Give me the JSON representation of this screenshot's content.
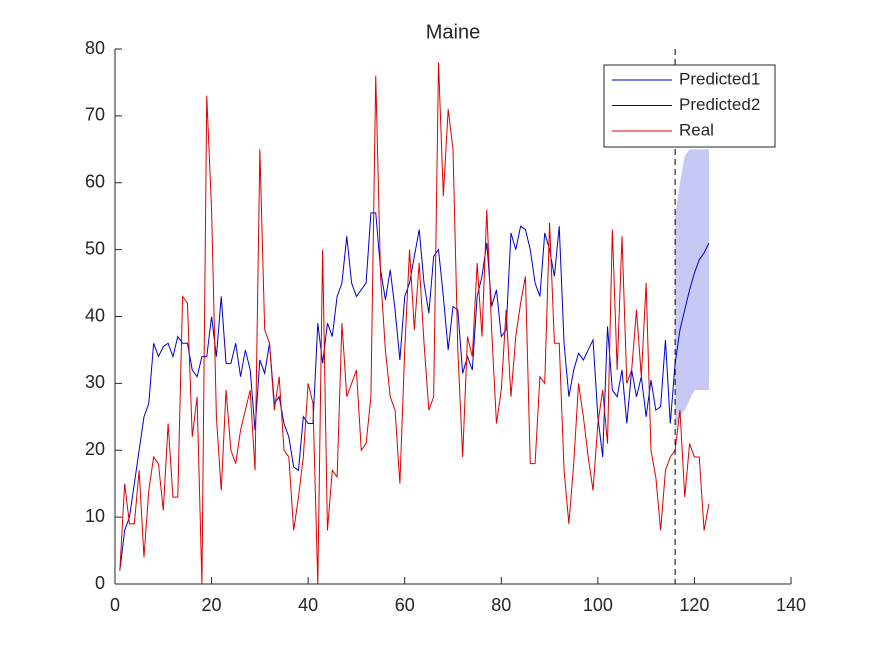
{
  "chart_data": {
    "type": "line",
    "title": "Maine",
    "xlim": [
      0,
      140
    ],
    "xticks": [
      0,
      20,
      40,
      60,
      80,
      100,
      120,
      140
    ],
    "ylim": [
      0,
      80
    ],
    "yticks": [
      0,
      10,
      20,
      30,
      40,
      50,
      60,
      70,
      80
    ],
    "legend": "top-right",
    "vline": 116,
    "series": [
      {
        "name": "Predicted1",
        "color": "#0000cc",
        "x": [
          1,
          2,
          3,
          4,
          5,
          6,
          7,
          8,
          9,
          10,
          11,
          12,
          13,
          14,
          15,
          16,
          17,
          18,
          19,
          20,
          21,
          22,
          23,
          24,
          25,
          26,
          27,
          28,
          29,
          30,
          31,
          32,
          33,
          34,
          35,
          36,
          37,
          38,
          39,
          40,
          41,
          42,
          43,
          44,
          45,
          46,
          47,
          48,
          49,
          50,
          51,
          52,
          53,
          54,
          55,
          56,
          57,
          58,
          59,
          60,
          61,
          62,
          63,
          64,
          65,
          66,
          67,
          68,
          69,
          70,
          71,
          72,
          73,
          74,
          75,
          76,
          77,
          78,
          79,
          80,
          81,
          82,
          83,
          84,
          85,
          86,
          87,
          88,
          89,
          90,
          91,
          92,
          93,
          94,
          95,
          96,
          97,
          98,
          99,
          100,
          101,
          102,
          103,
          104,
          105,
          106,
          107,
          108,
          109,
          110,
          111,
          112,
          113,
          114,
          115,
          116
        ],
        "values": [
          2,
          8,
          10,
          15,
          20,
          25,
          27,
          36,
          34,
          35.5,
          36,
          34,
          37,
          36,
          36,
          32,
          31,
          34,
          34,
          40,
          34,
          43,
          33,
          33,
          36,
          31,
          35,
          32,
          23,
          33.5,
          31.5,
          36,
          27,
          28,
          24,
          22,
          17.5,
          17,
          25,
          24,
          24,
          39,
          33,
          39,
          37,
          43,
          45,
          52,
          45,
          43,
          44,
          45,
          55.5,
          55.5,
          47,
          42.5,
          47,
          41,
          33.5,
          43,
          45,
          49,
          53,
          45,
          40.5,
          49,
          50,
          43,
          35,
          41.5,
          41,
          31.5,
          34,
          32,
          43,
          46,
          51,
          41.5,
          44,
          37,
          38,
          52.5,
          50,
          53.5,
          53,
          50,
          45,
          43,
          52.5,
          50,
          46,
          53.5,
          36,
          28,
          32,
          34.5,
          33.5,
          35,
          36.5,
          25,
          19,
          38.5,
          29,
          28,
          32,
          24,
          32,
          28,
          31,
          25,
          30.5,
          26,
          26.5,
          36.5,
          24,
          33
        ]
      },
      {
        "name": "Predicted2",
        "color": "#0000cc",
        "x": [
          116,
          117,
          118,
          119,
          120,
          121,
          122,
          123
        ],
        "values": [
          33,
          38,
          41,
          44,
          46.5,
          48.5,
          49.5,
          51
        ]
      },
      {
        "name": "Real",
        "color": "#dd0000",
        "x": [
          1,
          2,
          3,
          4,
          5,
          6,
          7,
          8,
          9,
          10,
          11,
          12,
          13,
          14,
          15,
          16,
          17,
          18,
          19,
          20,
          21,
          22,
          23,
          24,
          25,
          26,
          27,
          28,
          29,
          30,
          31,
          32,
          33,
          34,
          35,
          36,
          37,
          38,
          39,
          40,
          41,
          42,
          43,
          44,
          45,
          46,
          47,
          48,
          49,
          50,
          51,
          52,
          53,
          54,
          55,
          56,
          57,
          58,
          59,
          60,
          61,
          62,
          63,
          64,
          65,
          66,
          67,
          68,
          69,
          70,
          71,
          72,
          73,
          74,
          75,
          76,
          77,
          78,
          79,
          80,
          81,
          82,
          83,
          84,
          85,
          86,
          87,
          88,
          89,
          90,
          91,
          92,
          93,
          94,
          95,
          96,
          97,
          98,
          99,
          100,
          101,
          102,
          103,
          104,
          105,
          106,
          107,
          108,
          109,
          110,
          111,
          112,
          113,
          114,
          115,
          116,
          117,
          118,
          119,
          120,
          121,
          122,
          123
        ],
        "values": [
          2,
          15,
          9,
          9,
          17,
          4,
          14,
          19,
          18,
          11,
          24,
          13,
          13,
          43,
          42,
          22,
          28,
          0,
          73,
          56,
          25,
          14,
          29,
          20,
          18,
          23,
          26,
          29,
          17,
          65,
          38,
          36,
          26,
          31,
          20,
          19,
          8,
          13,
          19,
          30,
          27,
          0,
          50,
          8,
          17,
          16,
          39,
          28,
          30,
          32,
          20,
          21,
          28,
          76,
          46,
          35,
          28,
          26,
          15,
          35,
          50,
          38,
          48,
          36,
          26,
          28,
          78,
          58,
          71,
          65,
          35,
          19,
          37,
          34,
          48,
          37,
          56,
          38,
          24,
          29,
          41,
          28,
          37,
          42,
          46,
          18,
          18,
          31,
          30,
          54,
          36,
          36,
          17,
          9,
          18,
          30,
          25,
          19,
          14,
          24,
          29,
          21,
          53,
          32,
          52,
          30,
          32,
          41,
          31,
          45,
          20,
          16,
          8,
          17,
          19,
          20,
          26,
          13,
          21,
          19,
          19,
          8,
          12
        ]
      }
    ],
    "band": {
      "color": "#c8c8f5",
      "x": [
        116,
        117,
        118,
        119,
        120,
        121,
        122,
        123
      ],
      "lower": [
        23,
        25,
        26,
        27.5,
        29,
        29,
        29,
        29
      ],
      "upper": [
        55,
        60,
        64,
        65,
        65,
        65,
        65,
        65
      ]
    }
  }
}
